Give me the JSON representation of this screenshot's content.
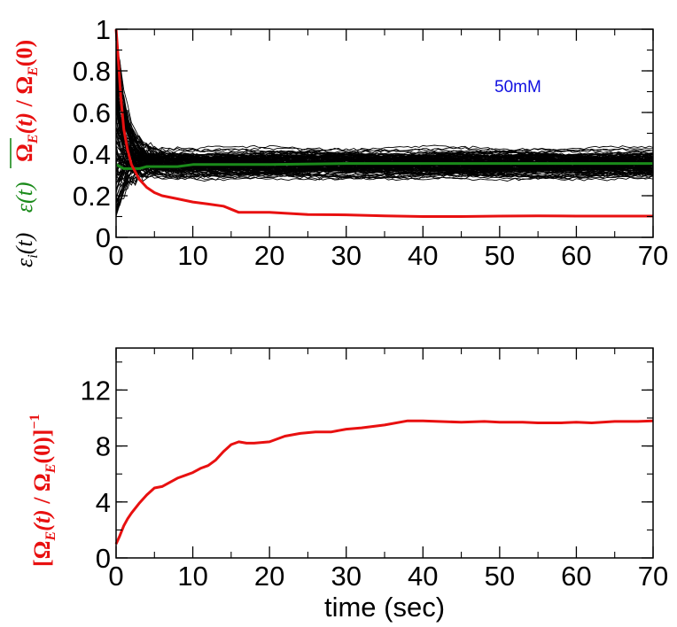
{
  "colors": {
    "series_black": "#000000",
    "series_green": "#1a8a1a",
    "series_red": "#e81010",
    "annotation_blue": "#1010e0"
  },
  "chart_data": [
    {
      "type": "line",
      "title": "",
      "xlabel": "",
      "xlim": [
        0,
        70
      ],
      "ylim": [
        0,
        1
      ],
      "xticks": [
        "0",
        "10",
        "20",
        "30",
        "40",
        "50",
        "60",
        "70"
      ],
      "yticks": [
        "0",
        "0.2",
        "0.4",
        "0.6",
        "0.8",
        "1"
      ],
      "ylabel_parts": {
        "black": "ε_i(t)",
        "green": "ε(t) overlined",
        "red": "Ω_E(t) / Ω_E(0)"
      },
      "annotation": "50mM",
      "grid": false,
      "ensemble": {
        "description_of_lines": "about 120 individual black traces",
        "count": 120,
        "y_range_steady_state": [
          0.24,
          0.55
        ],
        "color": "black"
      },
      "series": [
        {
          "label_part": "green",
          "color": "#1a8a1a",
          "x": [
            0,
            0.5,
            1,
            2,
            3,
            4,
            5,
            6,
            8,
            10,
            15,
            20,
            30,
            40,
            50,
            60,
            70
          ],
          "y": [
            0.35,
            0.34,
            0.33,
            0.33,
            0.33,
            0.34,
            0.34,
            0.34,
            0.34,
            0.35,
            0.35,
            0.35,
            0.355,
            0.355,
            0.355,
            0.355,
            0.355
          ]
        },
        {
          "label_part": "red",
          "color": "#e81010",
          "x": [
            0,
            0.3,
            0.6,
            1,
            1.5,
            2,
            3,
            4,
            5,
            6,
            8,
            10,
            12,
            14,
            15,
            16,
            18,
            20,
            25,
            30,
            35,
            40,
            45,
            50,
            55,
            60,
            65,
            70
          ],
          "y": [
            1.0,
            0.85,
            0.68,
            0.52,
            0.42,
            0.35,
            0.28,
            0.24,
            0.215,
            0.2,
            0.185,
            0.17,
            0.16,
            0.15,
            0.135,
            0.12,
            0.12,
            0.12,
            0.11,
            0.108,
            0.103,
            0.1,
            0.1,
            0.102,
            0.103,
            0.102,
            0.102,
            0.102
          ]
        }
      ]
    },
    {
      "type": "line",
      "title": "",
      "xlabel": "time (sec)",
      "ylabel": "[Ω_E(t) / Ω_E(0)]^-1",
      "xlim": [
        0,
        70
      ],
      "ylim": [
        0,
        15
      ],
      "xticks": [
        "0",
        "10",
        "20",
        "30",
        "40",
        "50",
        "60",
        "70"
      ],
      "yticks": [
        "0",
        "4",
        "8",
        "12"
      ],
      "grid": false,
      "series": [
        {
          "color": "#e81010",
          "x": [
            0,
            0.5,
            1,
            1.5,
            2,
            3,
            4,
            5,
            6,
            7,
            8,
            9,
            10,
            11,
            12,
            13,
            14,
            15,
            16,
            17,
            18,
            20,
            22,
            24,
            26,
            28,
            30,
            32,
            35,
            38,
            40,
            42,
            45,
            48,
            50,
            53,
            55,
            58,
            60,
            62,
            65,
            68,
            70
          ],
          "y": [
            1.0,
            1.6,
            2.3,
            2.8,
            3.2,
            3.9,
            4.5,
            5.0,
            5.1,
            5.4,
            5.7,
            5.9,
            6.1,
            6.4,
            6.6,
            7.0,
            7.6,
            8.1,
            8.3,
            8.2,
            8.2,
            8.3,
            8.7,
            8.9,
            9.0,
            9.0,
            9.2,
            9.3,
            9.5,
            9.8,
            9.8,
            9.75,
            9.7,
            9.75,
            9.7,
            9.7,
            9.65,
            9.65,
            9.7,
            9.65,
            9.75,
            9.75,
            9.8
          ]
        }
      ]
    }
  ]
}
